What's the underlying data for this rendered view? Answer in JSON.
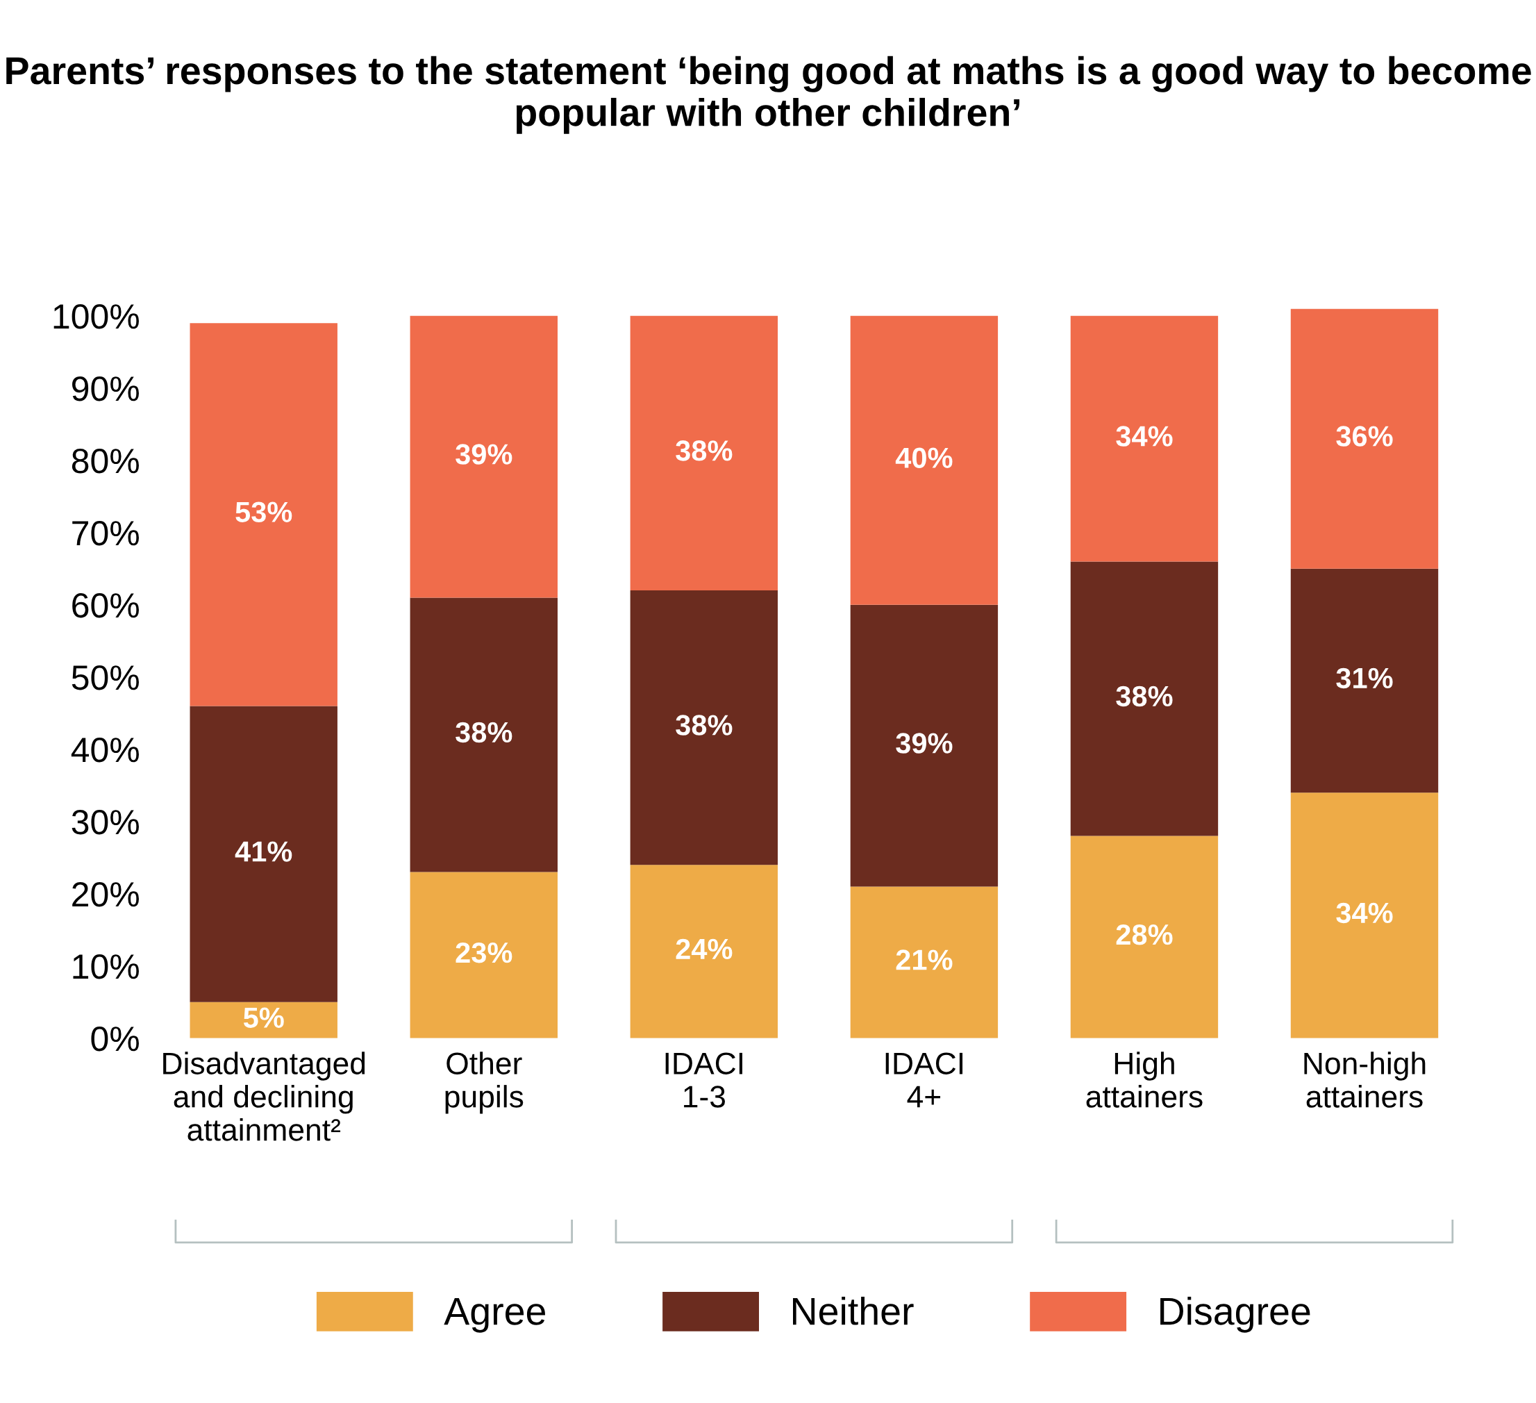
{
  "chart_data": {
    "type": "bar",
    "stacked": true,
    "title": "Parents’ responses to the statement ‘being good at maths is a good way to become popular with other children’",
    "categories": [
      "Disadvantaged\nand declining\nattainment²",
      "Other\npupils",
      "IDACI\n1-3",
      "IDACI\n4+",
      "High\nattainers",
      "Non-high\nattainers"
    ],
    "series": [
      {
        "name": "Agree",
        "color": "#eeab47",
        "values": [
          5,
          23,
          24,
          21,
          28,
          34
        ],
        "value_labels": [
          "5%",
          "23%",
          "24%",
          "21%",
          "28%",
          "34%"
        ]
      },
      {
        "name": "Neither",
        "color": "#6b2c1f",
        "values": [
          41,
          38,
          38,
          39,
          38,
          31
        ],
        "value_labels": [
          "41%",
          "38%",
          "38%",
          "39%",
          "38%",
          "31%"
        ]
      },
      {
        "name": "Disagree",
        "color": "#f06c4b",
        "values": [
          53,
          39,
          38,
          40,
          34,
          36
        ],
        "value_labels": [
          "53%",
          "39%",
          "38%",
          "40%",
          "34%",
          "36%"
        ]
      }
    ],
    "ylim": [
      0,
      101
    ],
    "yticks": [
      {
        "value": 0,
        "label": "0%"
      },
      {
        "value": 10,
        "label": "10%"
      },
      {
        "value": 20,
        "label": "20%"
      },
      {
        "value": 30,
        "label": "30%"
      },
      {
        "value": 40,
        "label": "40%"
      },
      {
        "value": 50,
        "label": "50%"
      },
      {
        "value": 60,
        "label": "60%"
      },
      {
        "value": 70,
        "label": "70%"
      },
      {
        "value": 80,
        "label": "80%"
      },
      {
        "value": 90,
        "label": "90%"
      },
      {
        "value": 100,
        "label": "100%"
      }
    ],
    "grid": false,
    "legend": "bottom"
  }
}
